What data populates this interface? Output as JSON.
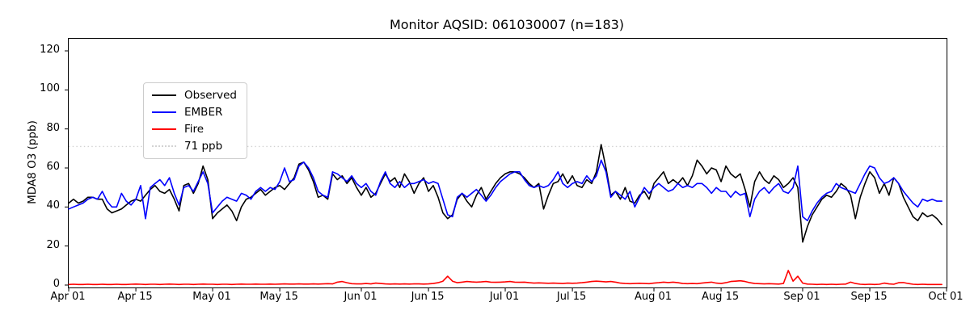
{
  "title": "Monitor AQSID: 061030007 (n=183)",
  "ylabel": "MDA8 O3 (ppb)",
  "colors": {
    "observed": "#000000",
    "ember": "#0000ff",
    "fire": "#ff0000",
    "threshold": "#d3d3d3",
    "axis": "#000000",
    "legend_border": "#cccccc"
  },
  "legend": [
    {
      "label": "Observed",
      "color": "#000000",
      "style": "solid"
    },
    {
      "label": "EMBER",
      "color": "#0000ff",
      "style": "solid"
    },
    {
      "label": "Fire",
      "color": "#ff0000",
      "style": "solid"
    },
    {
      "label": "71 ppb",
      "color": "#d3d3d3",
      "style": "dotted"
    }
  ],
  "chart_data": {
    "type": "line",
    "title": "Monitor AQSID: 061030007 (n=183)",
    "xlabel": "",
    "ylabel": "MDA8 O3 (ppb)",
    "n": 183,
    "ylim": [
      0,
      126
    ],
    "yticks": [
      0,
      20,
      40,
      60,
      80,
      100,
      120
    ],
    "threshold_ppb": 71,
    "x_total_days": 183,
    "x_start_date": "Apr 01",
    "x_end_date": "Oct 01",
    "x_tick_days": [
      0,
      14,
      30,
      44,
      61,
      75,
      91,
      105,
      122,
      136,
      153,
      167,
      183
    ],
    "x_tick_labels": [
      "Apr 01",
      "Apr 15",
      "May 01",
      "May 15",
      "Jun 01",
      "Jun 15",
      "Jul 01",
      "Jul 15",
      "Aug 01",
      "Aug 15",
      "Sep 01",
      "Sep 15",
      "Oct 01"
    ],
    "legend_position": "upper left",
    "grid": false,
    "series": [
      {
        "name": "Observed",
        "color": "#000000",
        "values": [
          42,
          44,
          42,
          43,
          45,
          45,
          44,
          44,
          39,
          37,
          38,
          39,
          41,
          43,
          44,
          43,
          46,
          49,
          51,
          48,
          47,
          49,
          44,
          38,
          51,
          52,
          47,
          52,
          61,
          54,
          34,
          37,
          39,
          41,
          38,
          33,
          40,
          44,
          45,
          47,
          49,
          46,
          48,
          50,
          51,
          49,
          52,
          55,
          62,
          63,
          59,
          53,
          45,
          46,
          44,
          57,
          54,
          56,
          52,
          55,
          50,
          46,
          50,
          45,
          47,
          52,
          57,
          53,
          55,
          50,
          57,
          53,
          47,
          52,
          55,
          48,
          51,
          45,
          37,
          34,
          36,
          44,
          47,
          43,
          40,
          46,
          50,
          44,
          48,
          52,
          55,
          57,
          58,
          58,
          57,
          55,
          52,
          50,
          52,
          39,
          46,
          52,
          53,
          57,
          52,
          56,
          51,
          50,
          54,
          52,
          58,
          72,
          60,
          46,
          48,
          44,
          50,
          43,
          42,
          46,
          48,
          44,
          52,
          55,
          58,
          52,
          54,
          52,
          55,
          51,
          56,
          64,
          61,
          57,
          60,
          59,
          53,
          61,
          57,
          55,
          57,
          49,
          40,
          53,
          58,
          54,
          52,
          56,
          54,
          50,
          52,
          55,
          50,
          22,
          30,
          36,
          40,
          44,
          46,
          45,
          48,
          52,
          50,
          46,
          34,
          45,
          52,
          58,
          55,
          47,
          52,
          46,
          55,
          52,
          45,
          40,
          35,
          33,
          37,
          35,
          36,
          34,
          31
        ]
      },
      {
        "name": "EMBER",
        "color": "#0000ff",
        "values": [
          39,
          40,
          41,
          42,
          44,
          45,
          44,
          48,
          43,
          40,
          40,
          47,
          43,
          41,
          44,
          51,
          34,
          50,
          52,
          54,
          51,
          55,
          47,
          41,
          50,
          51,
          48,
          53,
          58,
          52,
          37,
          40,
          43,
          45,
          44,
          43,
          47,
          46,
          44,
          48,
          50,
          48,
          50,
          49,
          53,
          60,
          53,
          54,
          61,
          63,
          60,
          55,
          48,
          46,
          45,
          58,
          57,
          55,
          53,
          56,
          52,
          50,
          52,
          48,
          46,
          53,
          58,
          52,
          50,
          53,
          50,
          52,
          52,
          53,
          54,
          52,
          53,
          52,
          44,
          36,
          35,
          45,
          47,
          45,
          47,
          49,
          46,
          43,
          46,
          50,
          53,
          55,
          57,
          58,
          58,
          54,
          51,
          50,
          51,
          50,
          51,
          54,
          58,
          52,
          50,
          52,
          53,
          52,
          56,
          53,
          56,
          64,
          58,
          45,
          48,
          46,
          44,
          48,
          40,
          45,
          50,
          47,
          50,
          52,
          50,
          48,
          49,
          52,
          50,
          51,
          50,
          52,
          52,
          50,
          47,
          50,
          48,
          48,
          45,
          48,
          46,
          47,
          35,
          44,
          48,
          50,
          47,
          50,
          52,
          48,
          47,
          50,
          61,
          35,
          33,
          38,
          42,
          45,
          47,
          48,
          52,
          50,
          49,
          48,
          47,
          52,
          57,
          61,
          60,
          55,
          52,
          53,
          55,
          52,
          48,
          45,
          42,
          40,
          44,
          43,
          44,
          43,
          43
        ]
      },
      {
        "name": "Fire",
        "color": "#ff0000",
        "values": [
          0.3,
          0.4,
          0.3,
          0.3,
          0.4,
          0.3,
          0.3,
          0.4,
          0.3,
          0.3,
          0.4,
          0.3,
          0.3,
          0.4,
          0.5,
          0.4,
          0.3,
          0.4,
          0.4,
          0.3,
          0.4,
          0.5,
          0.4,
          0.3,
          0.4,
          0.4,
          0.3,
          0.4,
          0.5,
          0.4,
          0.4,
          0.3,
          0.4,
          0.4,
          0.3,
          0.4,
          0.5,
          0.4,
          0.4,
          0.5,
          0.4,
          0.4,
          0.5,
          0.4,
          0.5,
          0.6,
          0.5,
          0.5,
          0.6,
          0.5,
          0.5,
          0.6,
          0.5,
          0.6,
          0.7,
          0.6,
          1.5,
          1.8,
          1.2,
          0.7,
          0.6,
          0.6,
          0.8,
          0.6,
          1.0,
          0.8,
          0.6,
          0.5,
          0.6,
          0.5,
          0.6,
          0.5,
          0.6,
          0.6,
          0.5,
          0.6,
          0.8,
          1.2,
          2.0,
          4.5,
          2.0,
          1.2,
          1.5,
          1.8,
          1.6,
          1.5,
          1.6,
          1.8,
          1.5,
          1.4,
          1.5,
          1.6,
          1.8,
          1.5,
          1.4,
          1.5,
          1.2,
          1.0,
          1.1,
          1.0,
          0.9,
          1.0,
          0.9,
          0.8,
          1.0,
          0.9,
          1.0,
          1.2,
          1.5,
          1.8,
          2.0,
          1.8,
          1.6,
          1.8,
          1.5,
          1.0,
          0.8,
          0.7,
          0.8,
          0.9,
          0.8,
          0.7,
          1.0,
          1.2,
          1.5,
          1.3,
          1.5,
          1.2,
          0.8,
          0.7,
          0.8,
          0.7,
          1.0,
          1.3,
          1.5,
          1.0,
          0.8,
          1.2,
          1.8,
          2.0,
          2.2,
          1.8,
          1.2,
          0.8,
          0.7,
          0.6,
          0.7,
          0.6,
          0.5,
          0.8,
          7.5,
          2.0,
          4.5,
          1.0,
          0.5,
          0.4,
          0.3,
          0.4,
          0.3,
          0.4,
          0.3,
          0.4,
          0.5,
          1.5,
          0.8,
          0.4,
          0.3,
          0.4,
          0.3,
          0.4,
          1.0,
          0.6,
          0.4,
          1.2,
          1.3,
          0.8,
          0.4,
          0.3,
          0.4,
          0.3,
          0.3,
          0.3,
          0.3
        ]
      }
    ]
  }
}
